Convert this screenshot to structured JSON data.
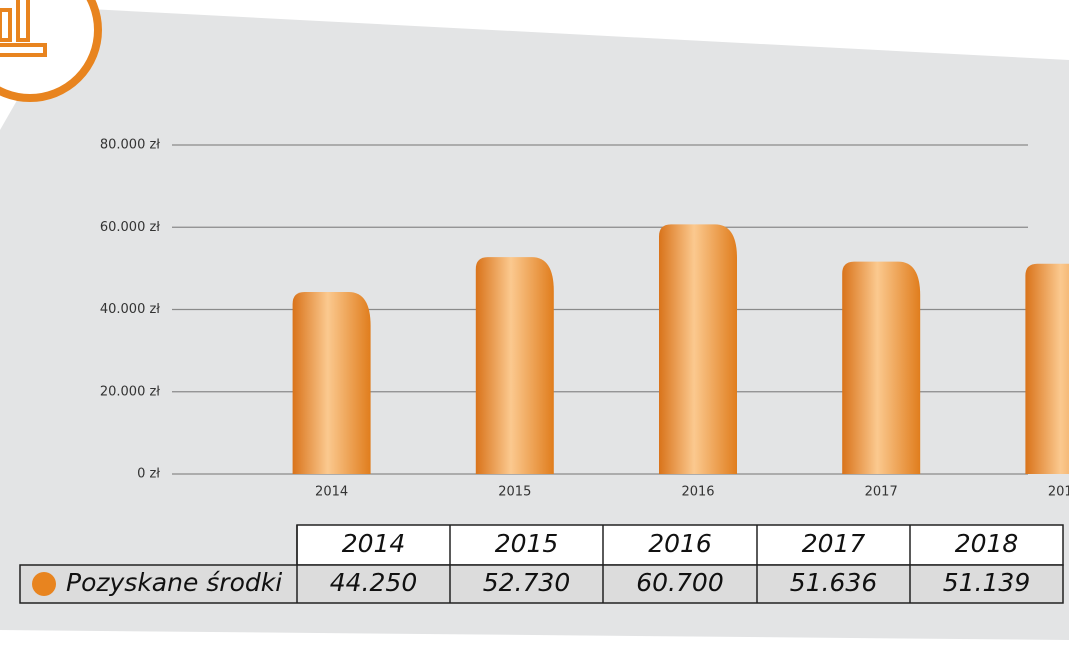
{
  "chart_data": {
    "type": "bar",
    "categories": [
      "2014",
      "2015",
      "2016",
      "2017",
      "2018"
    ],
    "series": [
      {
        "name": "Pozyskane środki",
        "color": "#e8841f",
        "values": [
          44250,
          52730,
          60700,
          51636,
          51139
        ],
        "value_labels": [
          "44.250",
          "52.730",
          "60.700",
          "51.636",
          "51.139"
        ]
      }
    ],
    "ylim": [
      0,
      80000
    ],
    "yticks": [
      {
        "value": 0,
        "label": "0 zł"
      },
      {
        "value": 20000,
        "label": "20.000 zł"
      },
      {
        "value": 40000,
        "label": "40.000 zł"
      },
      {
        "value": 60000,
        "label": "60.000 zł"
      },
      {
        "value": 80000,
        "label": "80.000 zł"
      }
    ],
    "grid": true
  }
}
